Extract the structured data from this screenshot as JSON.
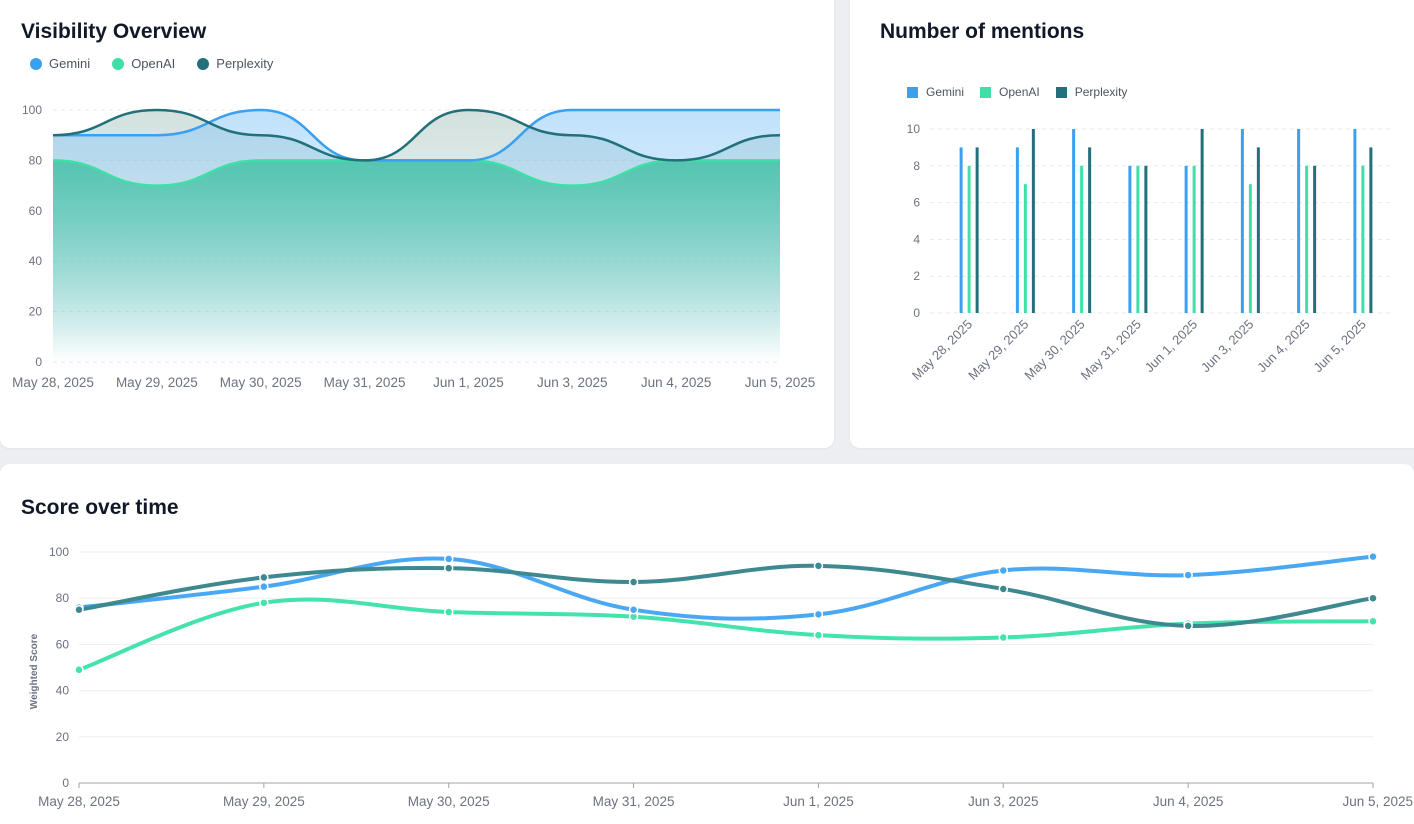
{
  "colors": {
    "gemini": "#3aa0f0",
    "openai": "#3ee0a8",
    "perplexity": "#22707a"
  },
  "visibility": {
    "title": "Visibility Overview",
    "legend": [
      "Gemini",
      "OpenAI",
      "Perplexity"
    ]
  },
  "mentions": {
    "title": "Number of mentions",
    "legend": [
      "Gemini",
      "OpenAI",
      "Perplexity"
    ]
  },
  "score": {
    "title": "Score over time",
    "ylabel": "Weighted Score"
  },
  "chart_data": [
    {
      "type": "area",
      "title": "Visibility Overview",
      "categories": [
        "May 28, 2025",
        "May 29, 2025",
        "May 30, 2025",
        "May 31, 2025",
        "Jun 1, 2025",
        "Jun 3, 2025",
        "Jun 4, 2025",
        "Jun 5, 2025"
      ],
      "series": [
        {
          "name": "Gemini",
          "values": [
            90,
            90,
            100,
            80,
            80,
            100,
            100,
            100
          ]
        },
        {
          "name": "OpenAI",
          "values": [
            80,
            70,
            80,
            80,
            80,
            70,
            80,
            80
          ]
        },
        {
          "name": "Perplexity",
          "values": [
            90,
            100,
            90,
            80,
            100,
            90,
            80,
            90
          ]
        }
      ],
      "ylim": [
        0,
        100
      ],
      "yticks": [
        0,
        20,
        40,
        60,
        80,
        100
      ],
      "grid": true,
      "legend_position": "top-left"
    },
    {
      "type": "bar",
      "title": "Number of mentions",
      "categories": [
        "May 28, 2025",
        "May 29, 2025",
        "May 30, 2025",
        "May 31, 2025",
        "Jun 1, 2025",
        "Jun 3, 2025",
        "Jun 4, 2025",
        "Jun 5, 2025"
      ],
      "series": [
        {
          "name": "Gemini",
          "values": [
            9,
            9,
            10,
            8,
            8,
            10,
            10,
            10
          ]
        },
        {
          "name": "OpenAI",
          "values": [
            8,
            7,
            8,
            8,
            8,
            7,
            8,
            8
          ]
        },
        {
          "name": "Perplexity",
          "values": [
            9,
            10,
            9,
            8,
            10,
            9,
            8,
            9
          ]
        }
      ],
      "ylim": [
        0,
        10
      ],
      "yticks": [
        0,
        2,
        4,
        6,
        8,
        10
      ],
      "grid": true,
      "legend_position": "top-left"
    },
    {
      "type": "line",
      "title": "Score over time",
      "ylabel": "Weighted Score",
      "categories": [
        "May 28, 2025",
        "May 29, 2025",
        "May 30, 2025",
        "May 31, 2025",
        "Jun 1, 2025",
        "Jun 3, 2025",
        "Jun 4, 2025",
        "Jun 5, 2025"
      ],
      "series": [
        {
          "name": "Gemini",
          "values": [
            76,
            85,
            97,
            75,
            73,
            92,
            90,
            98
          ]
        },
        {
          "name": "OpenAI",
          "values": [
            49,
            78,
            74,
            72,
            64,
            63,
            69,
            70
          ]
        },
        {
          "name": "Perplexity",
          "values": [
            75,
            89,
            93,
            87,
            94,
            84,
            68,
            80
          ]
        }
      ],
      "ylim": [
        0,
        100
      ],
      "yticks": [
        0,
        20,
        40,
        60,
        80,
        100
      ],
      "grid": true
    }
  ]
}
